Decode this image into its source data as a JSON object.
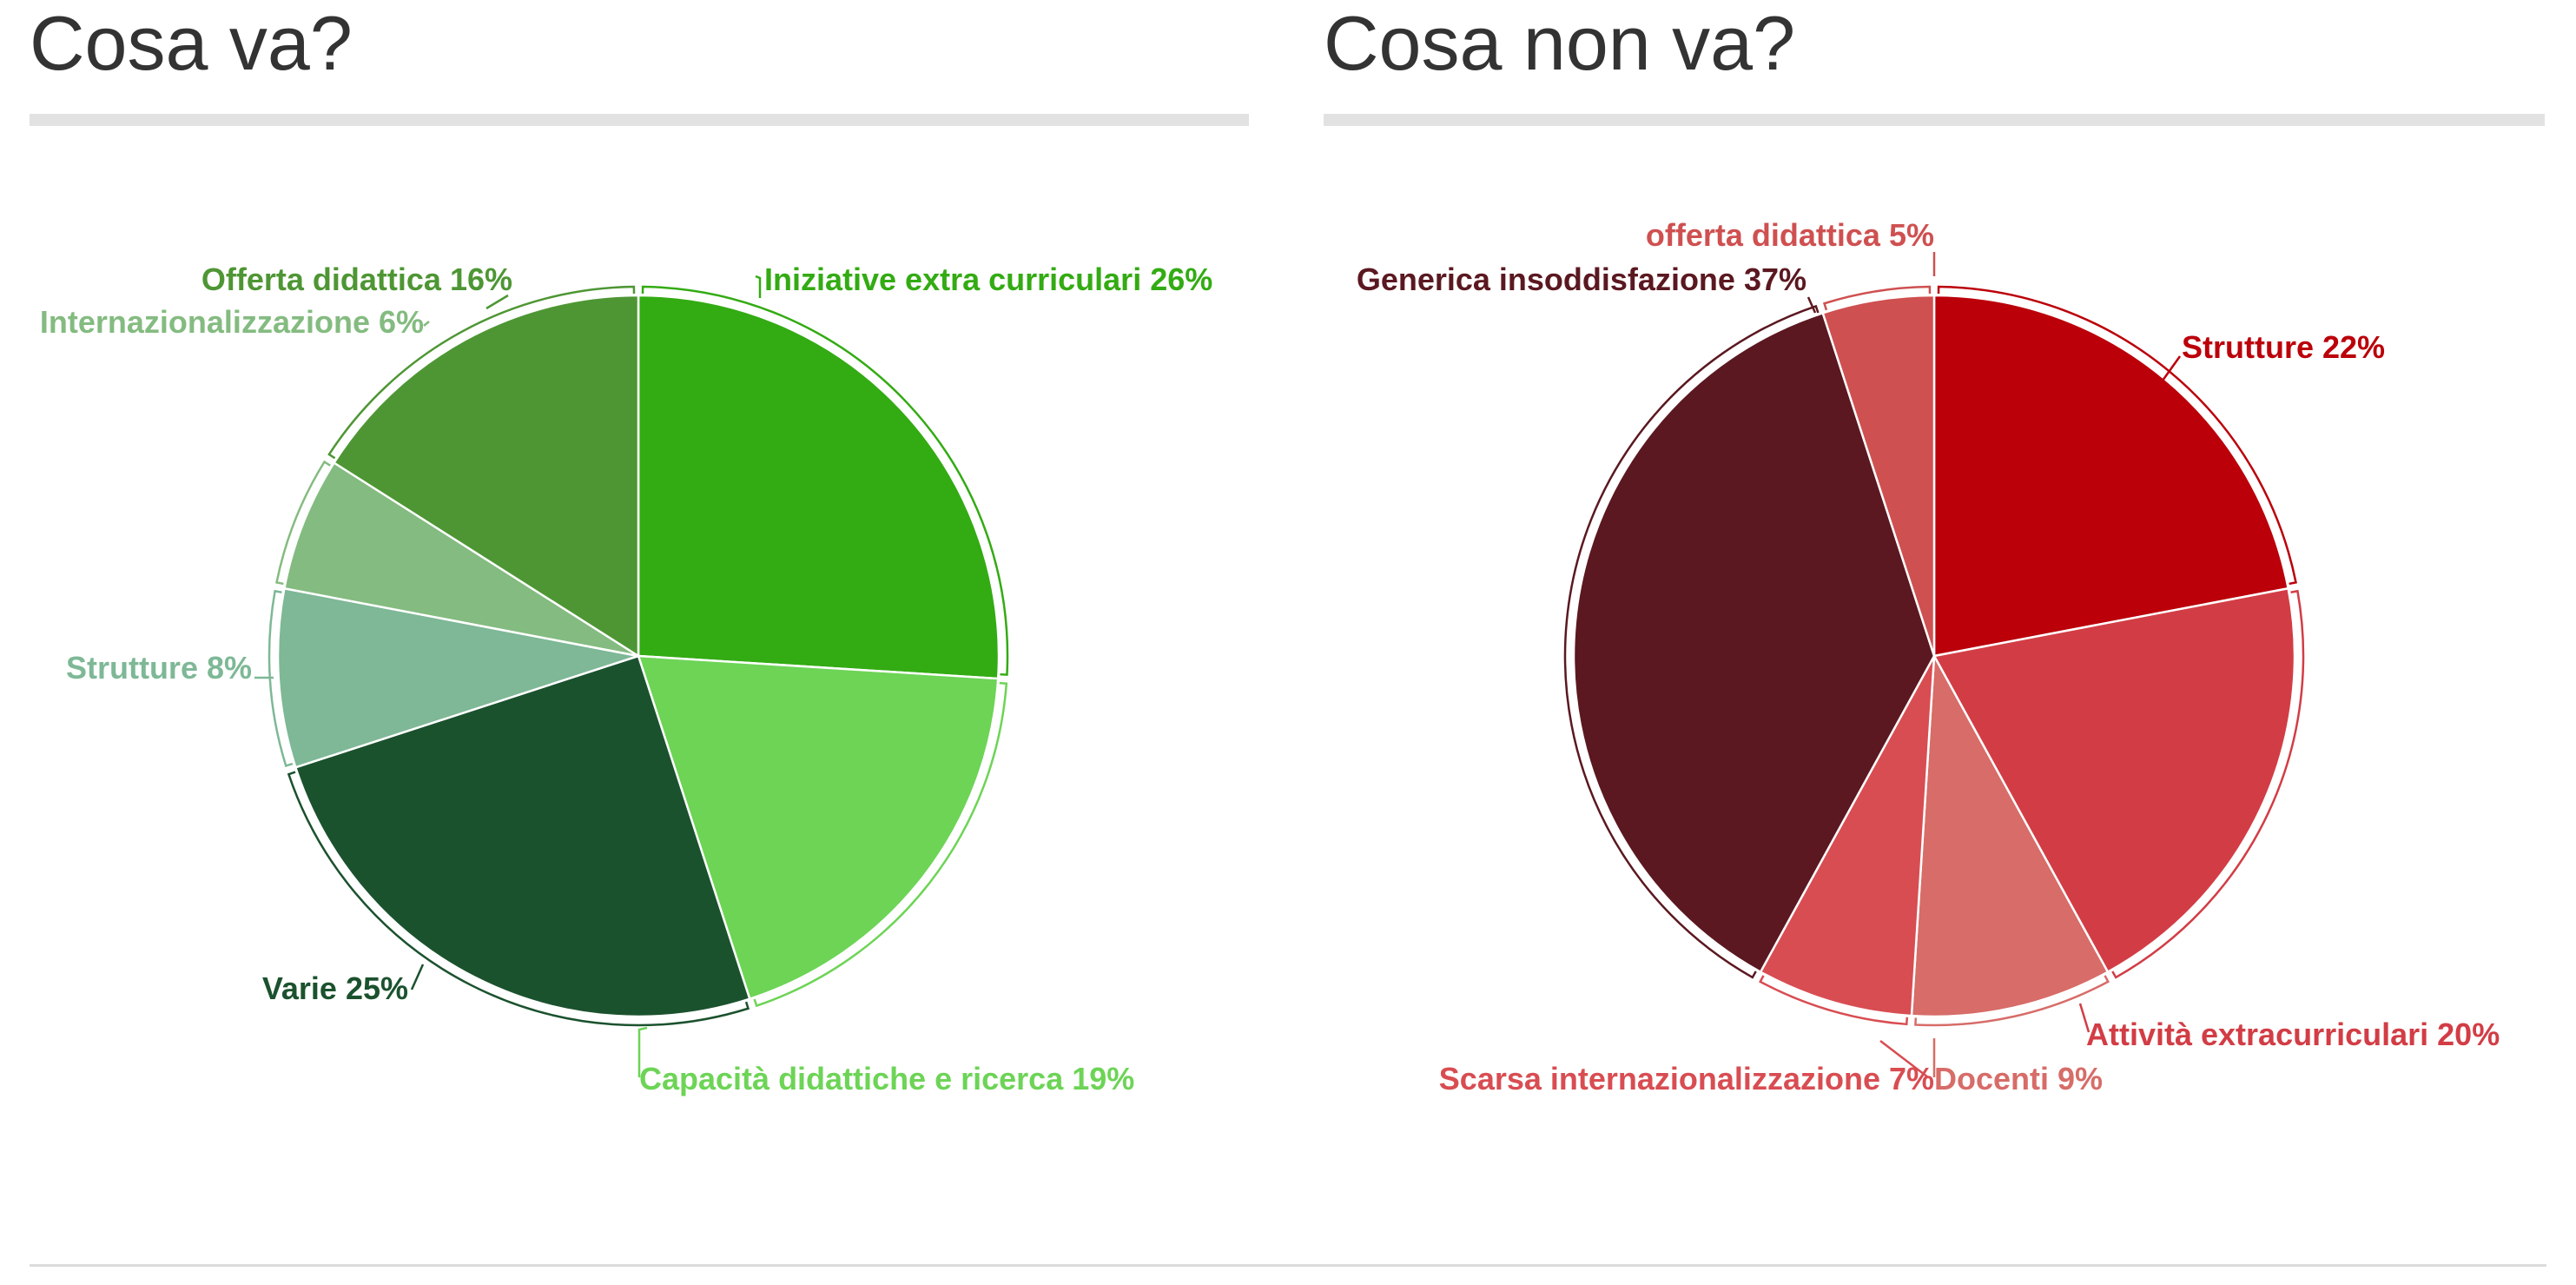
{
  "panels": {
    "left": {
      "title": "Cosa va?"
    },
    "right": {
      "title": "Cosa non va?"
    }
  },
  "chart_data": [
    {
      "type": "pie",
      "title": "Cosa va?",
      "slices": [
        {
          "label": "Iniziative extra curriculari 26%",
          "value": 26,
          "color": "#33ab13"
        },
        {
          "label": "Capacità didattiche e ricerca 19%",
          "value": 19,
          "color": "#6dd456"
        },
        {
          "label": "Varie 25%",
          "value": 25,
          "color": "#1b522e"
        },
        {
          "label": "Strutture 8%",
          "value": 8,
          "color": "#7eb896"
        },
        {
          "label": "Internazionalizzazione 6%",
          "value": 6,
          "color": "#84bb80"
        },
        {
          "label": "Offerta didattica 16%",
          "value": 16,
          "color": "#4e9634"
        }
      ]
    },
    {
      "type": "pie",
      "title": "Cosa non va?",
      "slices": [
        {
          "label": "Strutture 22%",
          "value": 22,
          "color": "#bb000a"
        },
        {
          "label": "Attività extracurriculari 20%",
          "value": 20,
          "color": "#d23d45"
        },
        {
          "label": "Docenti 9%",
          "value": 9,
          "color": "#d76c68"
        },
        {
          "label": "Scarsa internazionalizzazione 7%",
          "value": 7,
          "color": "#d84d52"
        },
        {
          "label": "Generica insoddisfazione 37%",
          "value": 37,
          "color": "#5b1820"
        },
        {
          "label": "offerta didattica 5%",
          "value": 5,
          "color": "#cf5050"
        }
      ]
    }
  ]
}
